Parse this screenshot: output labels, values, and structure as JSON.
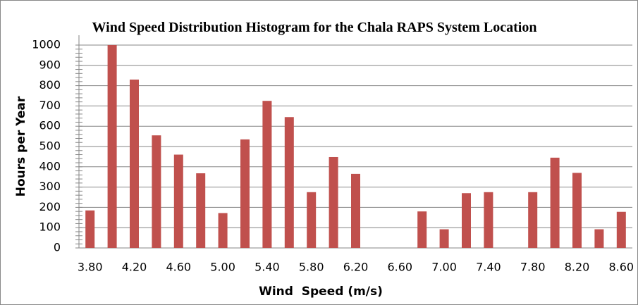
{
  "chart_data": {
    "type": "bar",
    "title": "Wind Speed Distribution Histogram for the Chala RAPS System Location",
    "x_label": "Wind  Speed (m/s)",
    "y_label": "Hours per Year",
    "categories": [
      "3.80",
      null,
      "4.20",
      null,
      "4.60",
      null,
      "5.00",
      null,
      "5.40",
      null,
      "5.80",
      null,
      "6.20",
      null,
      "6.60",
      null,
      "7.00",
      null,
      "7.40",
      null,
      "7.80",
      null,
      "8.20",
      null,
      "8.60"
    ],
    "values": [
      185,
      1000,
      830,
      555,
      460,
      368,
      172,
      535,
      725,
      645,
      275,
      448,
      365,
      0,
      0,
      180,
      92,
      270,
      275,
      0,
      275,
      445,
      370,
      92,
      178
    ],
    "color": "#c0504d",
    "ylim": [
      0,
      1000
    ],
    "yticks": [
      0,
      100,
      200,
      300,
      400,
      500,
      600,
      700,
      800,
      900,
      1000
    ],
    "grid": true
  }
}
